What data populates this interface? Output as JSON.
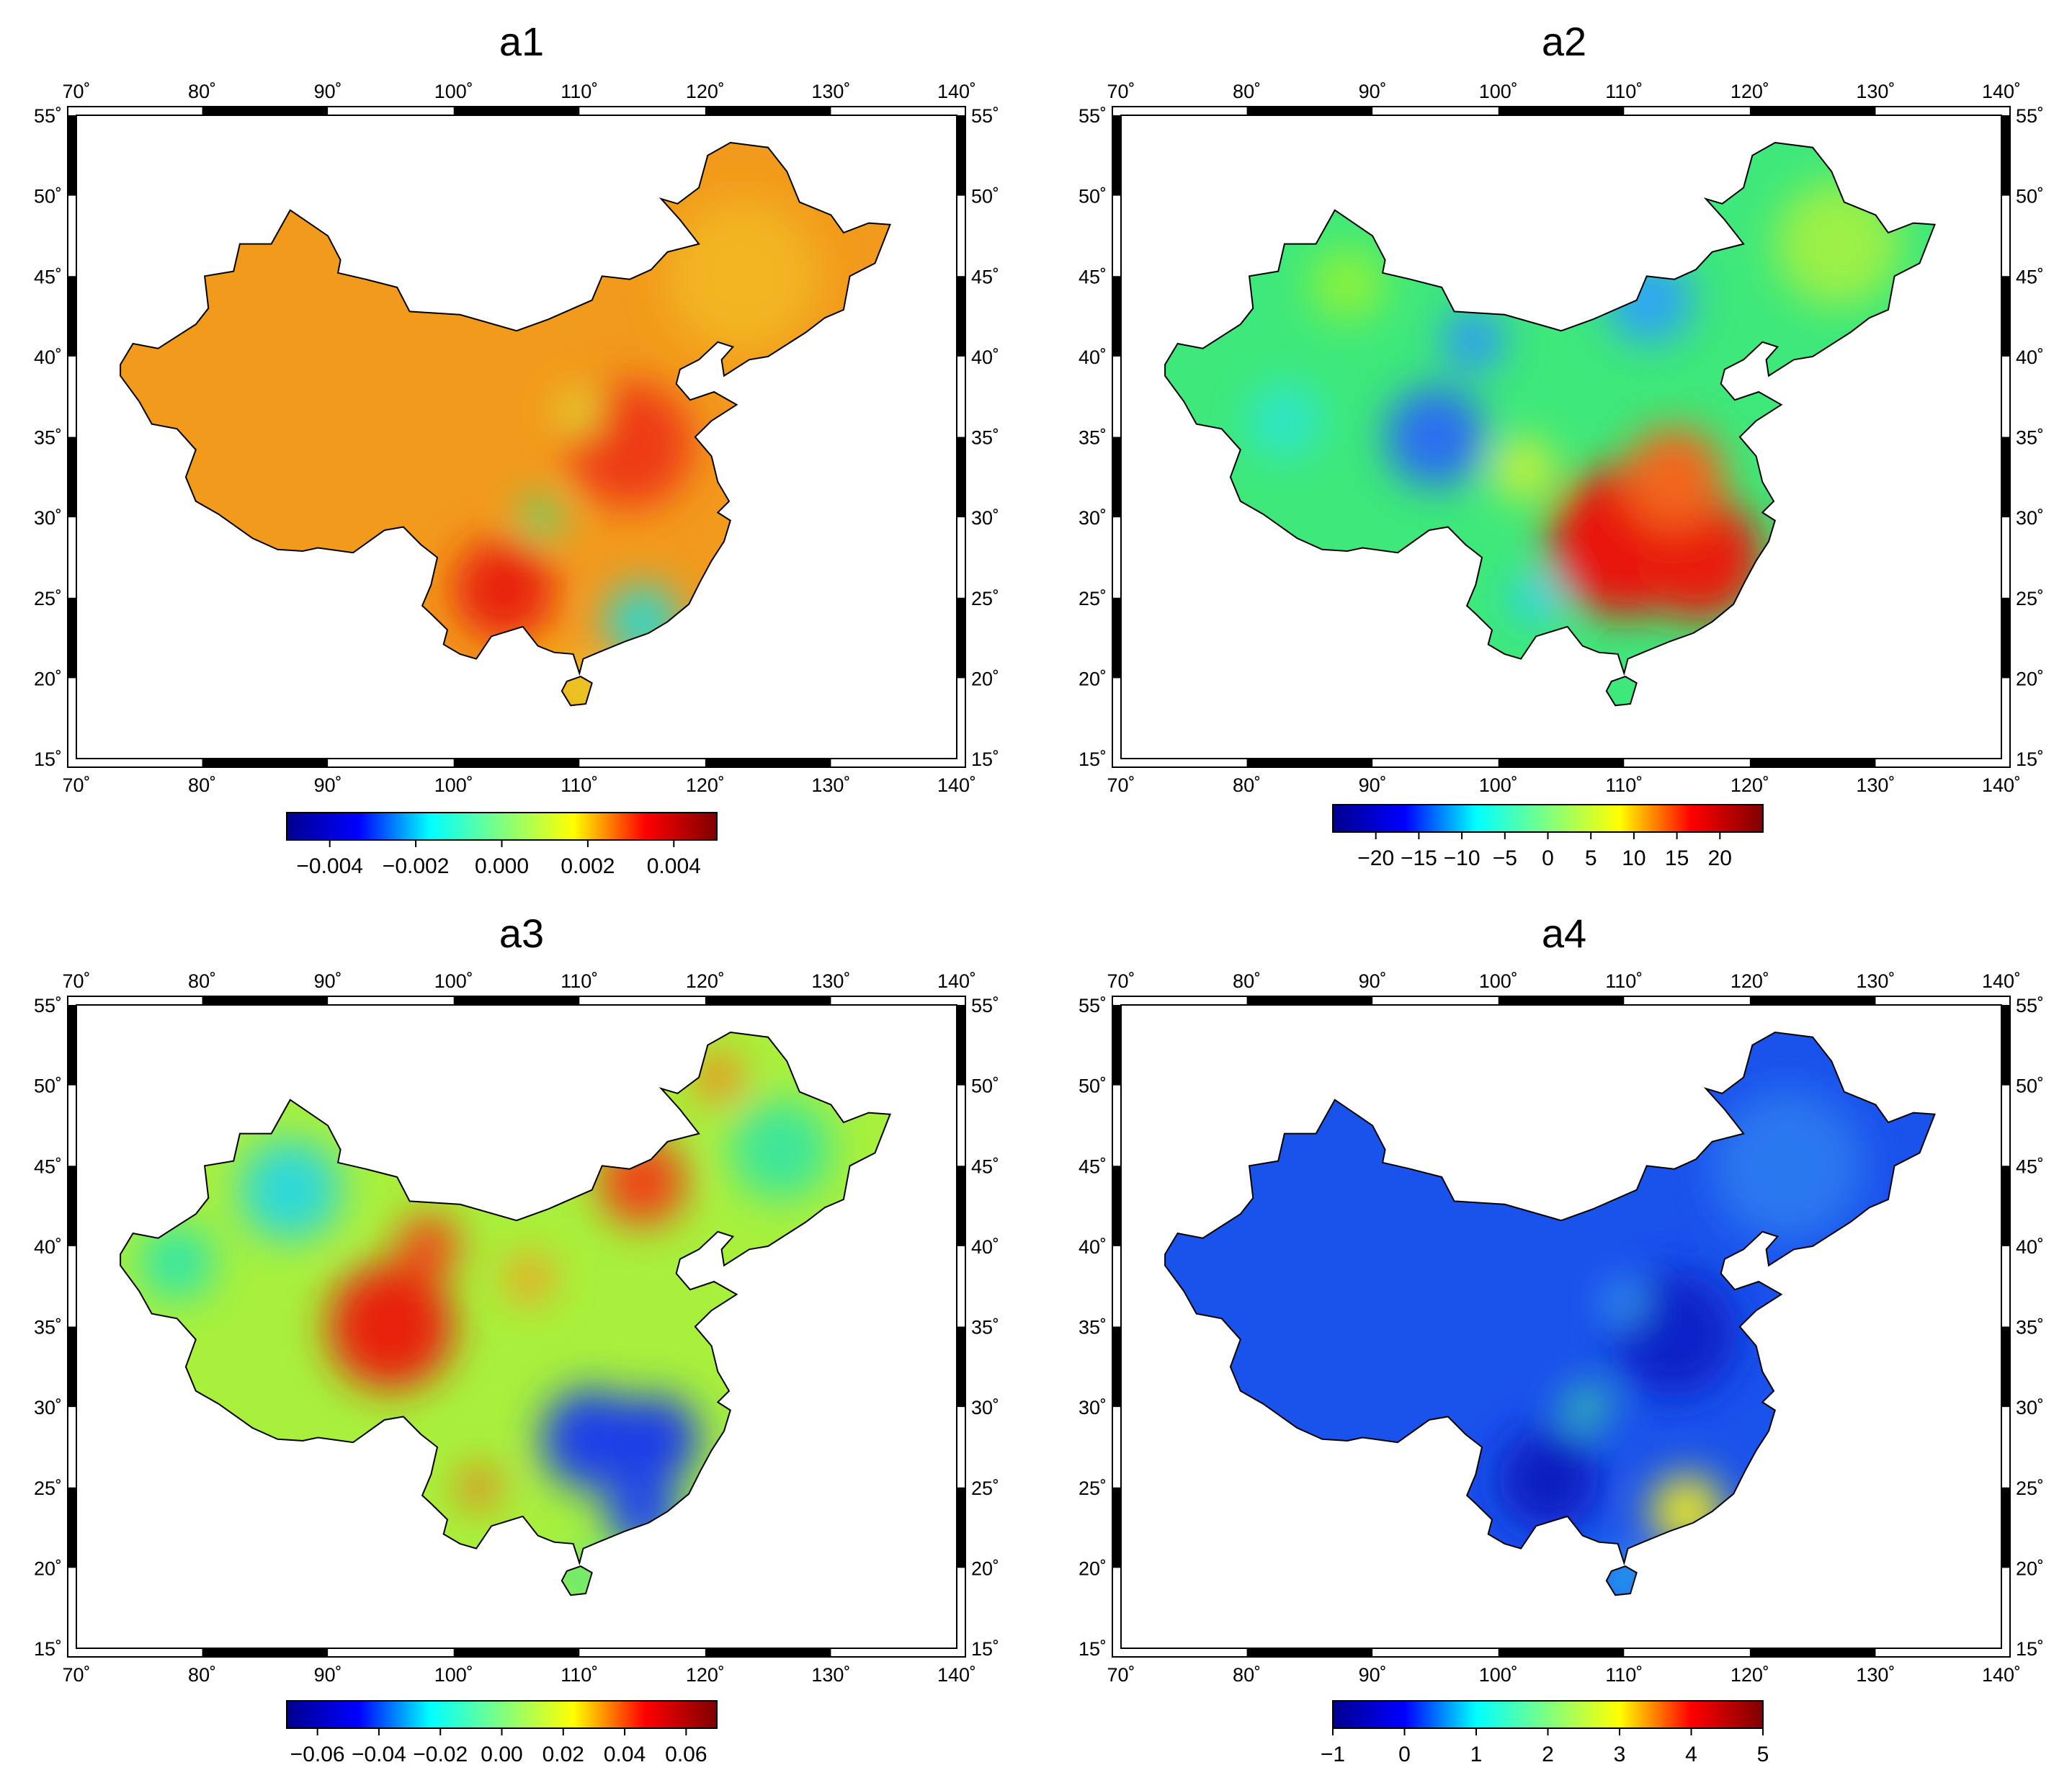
{
  "figure": {
    "panels": [
      {
        "id": "a1",
        "title": "a1",
        "colorbar": {
          "min": -0.005,
          "max": 0.005,
          "ticks": [
            "−0.004",
            "−0.002",
            "0.000",
            "0.002",
            "0.004"
          ],
          "tick_values": [
            -0.004,
            -0.002,
            0.0,
            0.002,
            0.004
          ]
        },
        "base_color": "#f29a1c",
        "features": [
          {
            "lon": 114,
            "lat": 34.5,
            "value": 0.0035,
            "color": "#ee3a12",
            "radius_deg": 5
          },
          {
            "lon": 104,
            "lat": 25.5,
            "value": 0.004,
            "color": "#e8220e",
            "radius_deg": 4
          },
          {
            "lon": 107,
            "lat": 30,
            "value": 0.0,
            "color": "#3fe27a",
            "radius_deg": 1.6
          },
          {
            "lon": 110,
            "lat": 36.5,
            "value": 0.001,
            "color": "#d8f23a",
            "radius_deg": 1.5
          },
          {
            "lon": 115,
            "lat": 23.5,
            "value": -0.001,
            "color": "#34d6c6",
            "radius_deg": 3
          },
          {
            "lon": 110,
            "lat": 19.3,
            "value": 0.0015,
            "color": "#e6ee2a",
            "radius_deg": 1.8
          },
          {
            "lon": 123,
            "lat": 45,
            "value": 0.0015,
            "color": "#f2b622",
            "radius_deg": 6
          }
        ]
      },
      {
        "id": "a2",
        "title": "a2",
        "colorbar": {
          "min": -25,
          "max": 25,
          "ticks": [
            "−20",
            "−15",
            "−10",
            "−5",
            "0",
            "5",
            "10",
            "15",
            "20"
          ],
          "tick_values": [
            -20,
            -15,
            -10,
            -5,
            0,
            5,
            10,
            15,
            20
          ]
        },
        "base_color": "#3ee87a",
        "features": [
          {
            "lon": 110,
            "lat": 28.5,
            "value": 20,
            "color": "#e8160e",
            "radius_deg": 6
          },
          {
            "lon": 116,
            "lat": 27.5,
            "value": 20,
            "color": "#e81c10",
            "radius_deg": 5
          },
          {
            "lon": 114,
            "lat": 32.5,
            "value": 12,
            "color": "#f2661a",
            "radius_deg": 4
          },
          {
            "lon": 95,
            "lat": 35,
            "value": -12,
            "color": "#2a6ef0",
            "radius_deg": 4
          },
          {
            "lon": 98,
            "lat": 41,
            "value": -10,
            "color": "#2f9af4",
            "radius_deg": 2.5
          },
          {
            "lon": 112,
            "lat": 43.5,
            "value": -8,
            "color": "#2ea6f2",
            "radius_deg": 3.5
          },
          {
            "lon": 88,
            "lat": 44.5,
            "value": 2,
            "color": "#8af23e",
            "radius_deg": 3
          },
          {
            "lon": 103,
            "lat": 25,
            "value": -6,
            "color": "#2cd2f0",
            "radius_deg": 2
          },
          {
            "lon": 127,
            "lat": 47,
            "value": 2,
            "color": "#9cf046",
            "radius_deg": 5
          },
          {
            "lon": 83,
            "lat": 36,
            "value": -4,
            "color": "#2ee6c8",
            "radius_deg": 3
          },
          {
            "lon": 102,
            "lat": 33,
            "value": 3,
            "color": "#c8f03a",
            "radius_deg": 2.5
          }
        ]
      },
      {
        "id": "a3",
        "title": "a3",
        "colorbar": {
          "min": -0.07,
          "max": 0.07,
          "ticks": [
            "−0.06",
            "−0.04",
            "−0.02",
            "0.00",
            "0.02",
            "0.04",
            "0.06"
          ],
          "tick_values": [
            -0.06,
            -0.04,
            -0.02,
            0.0,
            0.02,
            0.04,
            0.06
          ]
        },
        "base_color": "#a8f03c",
        "features": [
          {
            "lon": 95,
            "lat": 35,
            "value": 0.06,
            "color": "#e8220e",
            "radius_deg": 5
          },
          {
            "lon": 98,
            "lat": 40,
            "value": 0.05,
            "color": "#ee4a14",
            "radius_deg": 2.5
          },
          {
            "lon": 115,
            "lat": 44,
            "value": 0.05,
            "color": "#ee4412",
            "radius_deg": 3.5
          },
          {
            "lon": 121,
            "lat": 50.5,
            "value": 0.04,
            "color": "#f28a1c",
            "radius_deg": 2
          },
          {
            "lon": 111,
            "lat": 28,
            "value": -0.06,
            "color": "#1e40e8",
            "radius_deg": 4
          },
          {
            "lon": 116,
            "lat": 28,
            "value": -0.06,
            "color": "#1e3ce6",
            "radius_deg": 3.5
          },
          {
            "lon": 115,
            "lat": 23.5,
            "value": -0.06,
            "color": "#2048e8",
            "radius_deg": 3
          },
          {
            "lon": 87,
            "lat": 43.5,
            "value": -0.02,
            "color": "#2ed8d8",
            "radius_deg": 4
          },
          {
            "lon": 78,
            "lat": 39,
            "value": -0.01,
            "color": "#36e6a6",
            "radius_deg": 3
          },
          {
            "lon": 126,
            "lat": 46,
            "value": -0.01,
            "color": "#3ee69a",
            "radius_deg": 4
          },
          {
            "lon": 102,
            "lat": 25,
            "value": 0.04,
            "color": "#ee7018",
            "radius_deg": 1.6
          },
          {
            "lon": 106,
            "lat": 38,
            "value": 0.03,
            "color": "#f2a220",
            "radius_deg": 2
          },
          {
            "lon": 110,
            "lat": 19.3,
            "value": -0.01,
            "color": "#3ee69a",
            "radius_deg": 1.8
          }
        ]
      },
      {
        "id": "a4",
        "title": "a4",
        "colorbar": {
          "min": -1,
          "max": 5,
          "ticks": [
            "−1",
            "0",
            "1",
            "2",
            "3",
            "4",
            "5"
          ],
          "tick_values": [
            -1,
            0,
            1,
            2,
            3,
            4,
            5
          ]
        },
        "base_color": "#1a52ec",
        "features": [
          {
            "lon": 114,
            "lat": 34.5,
            "value": -0.8,
            "color": "#0c24c8",
            "radius_deg": 5
          },
          {
            "lon": 104,
            "lat": 25.5,
            "value": -0.9,
            "color": "#0a1cc0",
            "radius_deg": 4
          },
          {
            "lon": 107,
            "lat": 30,
            "value": 2,
            "color": "#3ee29a",
            "radius_deg": 1.6
          },
          {
            "lon": 110,
            "lat": 36.5,
            "value": 1,
            "color": "#3aa8f2",
            "radius_deg": 1.5
          },
          {
            "lon": 115,
            "lat": 23.5,
            "value": 3.2,
            "color": "#e6e42a",
            "radius_deg": 3
          },
          {
            "lon": 110,
            "lat": 19.3,
            "value": 1,
            "color": "#2ec6ee",
            "radius_deg": 1.8
          },
          {
            "lon": 123,
            "lat": 45,
            "value": 0.3,
            "color": "#2a78f0",
            "radius_deg": 6
          }
        ]
      }
    ],
    "axes": {
      "lon_min": 70,
      "lon_max": 140,
      "lat_min": 15,
      "lat_max": 55,
      "lon_labels": [
        "70˚",
        "80˚",
        "90˚",
        "100˚",
        "110˚",
        "120˚",
        "130˚",
        "140˚"
      ],
      "lon_values": [
        70,
        80,
        90,
        100,
        110,
        120,
        130,
        140
      ],
      "lat_labels": [
        "15˚",
        "20˚",
        "25˚",
        "30˚",
        "35˚",
        "40˚",
        "45˚",
        "50˚",
        "55˚"
      ],
      "lat_values": [
        15,
        20,
        25,
        30,
        35,
        40,
        45,
        50,
        55
      ]
    },
    "colormap": [
      "#00008f",
      "#0000ff",
      "#00ffff",
      "#7fff7f",
      "#ffff00",
      "#ff0000",
      "#7f0000"
    ]
  }
}
